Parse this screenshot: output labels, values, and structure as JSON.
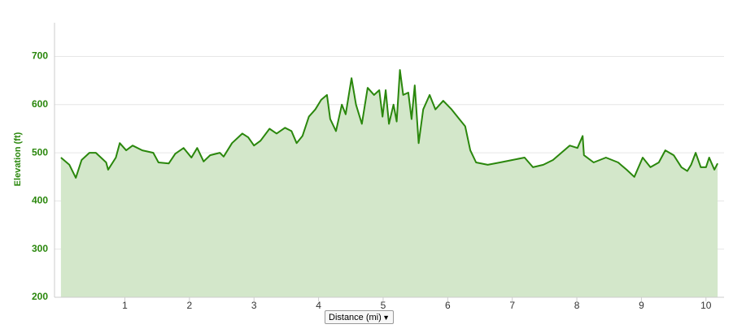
{
  "chart_data": {
    "type": "area",
    "y_label": "Elevation (ft)",
    "x_label": "Distance (mi)",
    "color": "#2a870c",
    "fill_color": "#d3e7ca",
    "grid": true,
    "xlim": [
      -0.09,
      10.28
    ],
    "ylim": [
      200,
      770
    ],
    "xticks": [
      1,
      2,
      3,
      4,
      5,
      6,
      7,
      8,
      9,
      10
    ],
    "yticks": [
      200,
      300,
      400,
      500,
      600,
      700
    ],
    "x": [
      0.01,
      0.14,
      0.24,
      0.33,
      0.45,
      0.55,
      0.71,
      0.74,
      0.86,
      0.92,
      1.02,
      1.12,
      1.27,
      1.44,
      1.52,
      1.68,
      1.78,
      1.91,
      2.03,
      2.12,
      2.22,
      2.32,
      2.47,
      2.53,
      2.66,
      2.82,
      2.91,
      3.0,
      3.1,
      3.24,
      3.35,
      3.48,
      3.58,
      3.66,
      3.75,
      3.85,
      3.95,
      4.04,
      4.13,
      4.18,
      4.27,
      4.36,
      4.42,
      4.51,
      4.58,
      4.67,
      4.76,
      4.86,
      4.94,
      4.99,
      5.04,
      5.09,
      5.16,
      5.21,
      5.26,
      5.31,
      5.39,
      5.44,
      5.49,
      5.55,
      5.62,
      5.72,
      5.81,
      5.93,
      6.06,
      6.18,
      6.27,
      6.35,
      6.44,
      6.62,
      6.81,
      7.0,
      7.19,
      7.32,
      7.48,
      7.63,
      7.76,
      7.89,
      8.01,
      8.09,
      8.11,
      8.26,
      8.45,
      8.64,
      8.77,
      8.89,
      9.02,
      9.14,
      9.27,
      9.37,
      9.5,
      9.62,
      9.71,
      9.77,
      9.84,
      9.92,
      10.0,
      10.05,
      10.13,
      10.18
    ],
    "values": [
      490,
      475,
      448,
      485,
      500,
      500,
      480,
      465,
      490,
      520,
      505,
      515,
      505,
      500,
      480,
      478,
      498,
      510,
      490,
      510,
      482,
      495,
      500,
      492,
      520,
      540,
      532,
      515,
      525,
      550,
      540,
      552,
      545,
      520,
      535,
      575,
      590,
      610,
      620,
      570,
      545,
      600,
      580,
      655,
      600,
      560,
      635,
      620,
      630,
      575,
      630,
      560,
      600,
      565,
      672,
      620,
      625,
      570,
      640,
      520,
      590,
      620,
      590,
      608,
      590,
      570,
      555,
      505,
      480,
      475,
      480,
      485,
      490,
      470,
      475,
      485,
      500,
      515,
      510,
      535,
      495,
      480,
      490,
      480,
      465,
      450,
      490,
      470,
      480,
      505,
      495,
      470,
      462,
      475,
      500,
      470,
      470,
      490,
      465,
      478
    ]
  }
}
